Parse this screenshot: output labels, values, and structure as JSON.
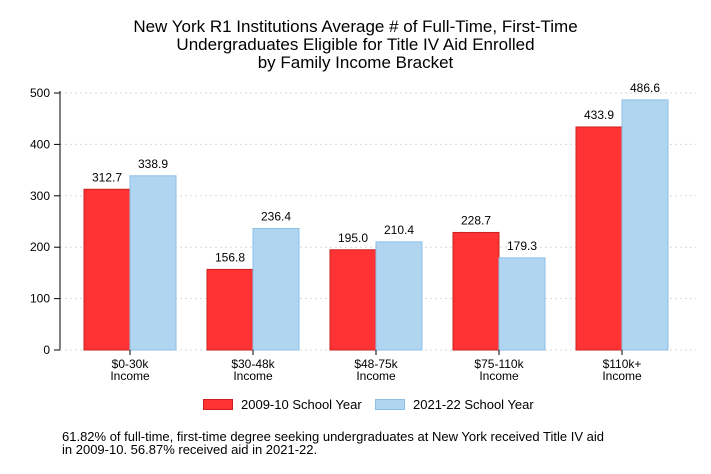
{
  "chart_data": {
    "type": "bar",
    "title_lines": [
      "New York R1 Institutions Average # of Full-Time, First-Time",
      "Undergraduates Eligible for Title IV Aid Enrolled",
      "by Family Income Bracket"
    ],
    "categories": [
      [
        "$0-30k",
        "Income"
      ],
      [
        "$30-48k",
        "Income"
      ],
      [
        "$48-75k",
        "Income"
      ],
      [
        "$75-110k",
        "Income"
      ],
      [
        "$110k+",
        "Income"
      ]
    ],
    "series": [
      {
        "name": "2009-10 School Year",
        "color": "#ff3333",
        "stroke": "#cc1f1f",
        "values": [
          312.7,
          156.8,
          195.0,
          228.7,
          433.9
        ],
        "labels": [
          "312.7",
          "156.8",
          "195.0",
          "228.7",
          "433.9"
        ]
      },
      {
        "name": "2021-22 School Year",
        "color": "#afd5f0",
        "stroke": "#8ebfe6",
        "values": [
          338.9,
          236.4,
          210.4,
          179.3,
          486.6
        ],
        "labels": [
          "338.9",
          "236.4",
          "210.4",
          "179.3",
          "486.6"
        ]
      }
    ],
    "yticks": [
      "0",
      "100",
      "200",
      "300",
      "400",
      "500"
    ],
    "ylim": [
      0,
      500
    ],
    "grid": true,
    "legend_position": "bottom"
  },
  "footnote_lines": [
    "61.82% of full-time, first-time degree seeking undergraduates at New York received Title IV aid",
    "in 2009-10. 56.87% received aid in 2021-22."
  ]
}
